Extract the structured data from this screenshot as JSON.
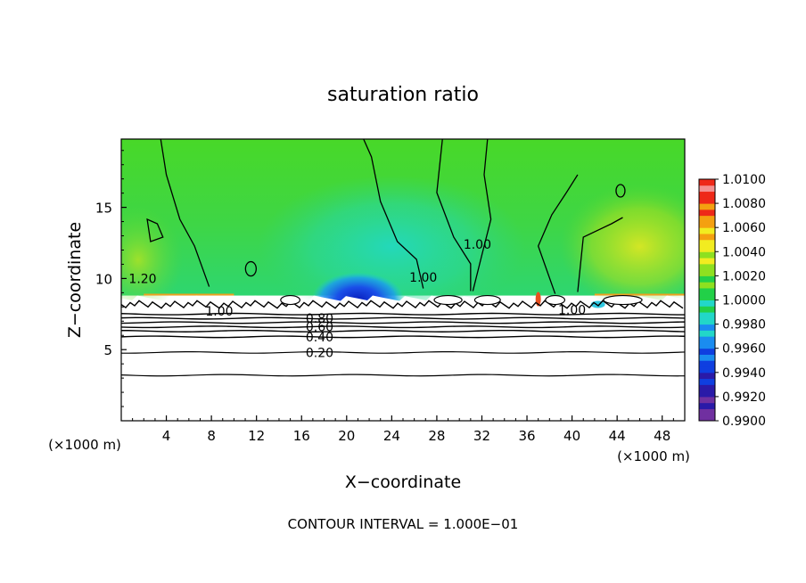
{
  "chart_data": {
    "type": "heatmap",
    "title": "saturation ratio",
    "xlabel": "X−coordinate",
    "ylabel": "Z−coordinate",
    "x_unit_left": "(×1000 m)",
    "x_unit_right": "(×1000 m)",
    "xlim": [
      0,
      50
    ],
    "ylim": [
      0,
      19.8
    ],
    "x_ticks": [
      4,
      8,
      12,
      16,
      20,
      24,
      28,
      32,
      36,
      40,
      44,
      48
    ],
    "y_ticks": [
      5,
      10,
      15
    ],
    "footer": "CONTOUR INTERVAL = 1.000E−01",
    "colorbar": {
      "levels": [
        "0.9900",
        "0.9920",
        "0.9940",
        "0.9960",
        "0.9980",
        "1.0000",
        "1.0020",
        "1.0040",
        "1.0060",
        "1.0080",
        "1.0100"
      ],
      "colors": [
        "#7030a0",
        "#2a1aa8",
        "#0f3fe0",
        "#1a8cf0",
        "#22d7c8",
        "#22d048",
        "#8ee020",
        "#f2ec20",
        "#f4a010",
        "#ee2818",
        "#f49090"
      ]
    },
    "contour_labels": [
      {
        "text": "1.20",
        "x": 1.9,
        "z": 10.0
      },
      {
        "text": "1.00",
        "x": 8.7,
        "z": 7.7
      },
      {
        "text": "0.80",
        "x": 17.6,
        "z": 7.2
      },
      {
        "text": "0.60",
        "x": 17.6,
        "z": 6.6
      },
      {
        "text": "0.40",
        "x": 17.6,
        "z": 5.9
      },
      {
        "text": "0.20",
        "x": 17.6,
        "z": 4.8
      },
      {
        "text": "1.00",
        "x": 26.8,
        "z": 10.1
      },
      {
        "text": "1.00",
        "x": 31.6,
        "z": 12.4
      },
      {
        "text": "1.00",
        "x": 40.0,
        "z": 7.8
      }
    ],
    "contours_lower": [
      3.2,
      4.8,
      5.9,
      6.3,
      6.6,
      6.9,
      7.2,
      7.5
    ],
    "cloud_top_z": 8.8
  }
}
